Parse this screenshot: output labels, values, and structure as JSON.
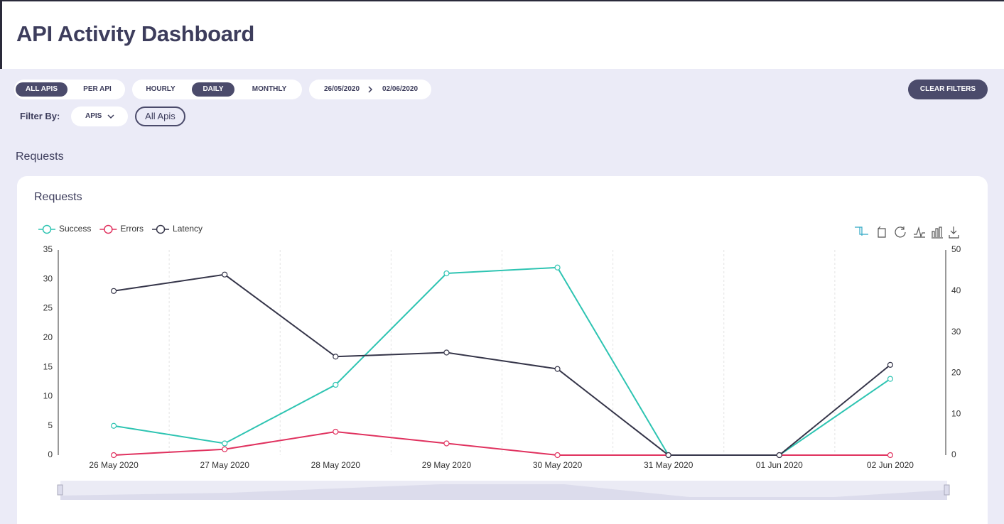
{
  "header": {
    "title": "API Activity Dashboard"
  },
  "filters": {
    "scope": [
      "ALL APIS",
      "PER API"
    ],
    "granularity": [
      "HOURLY",
      "DAILY",
      "MONTHLY"
    ],
    "date_range": {
      "start": "26/05/2020",
      "end": "02/06/2020"
    },
    "clear": "CLEAR FILTERS",
    "filter_by_label": "Filter By:",
    "dropdown": "APIS",
    "chip": "All Apis"
  },
  "section_title": "Requests",
  "chart_data": {
    "type": "line",
    "title": "Requests",
    "categories": [
      "26 May 2020",
      "27 May 2020",
      "28 May 2020",
      "29 May 2020",
      "30 May 2020",
      "31 May 2020",
      "01 Jun 2020",
      "02 Jun 2020"
    ],
    "series": [
      {
        "name": "Success",
        "color": "#2ec4b2",
        "values": [
          5,
          2,
          12,
          31,
          32,
          0,
          0,
          13
        ]
      },
      {
        "name": "Errors",
        "color": "#e0325f",
        "values": [
          0,
          1,
          4,
          2,
          0,
          0,
          0,
          0
        ]
      },
      {
        "name": "Latency",
        "color": "#353549",
        "axis": "y2",
        "values": [
          40,
          44,
          24,
          25,
          21,
          0,
          0,
          22
        ]
      }
    ],
    "ylim": [
      0,
      35
    ],
    "yticks": [
      0,
      5,
      10,
      15,
      20,
      25,
      30,
      35
    ],
    "y2lim": [
      0,
      50
    ],
    "y2ticks": [
      0,
      10,
      20,
      30,
      40,
      50
    ],
    "legend": "top-left"
  }
}
